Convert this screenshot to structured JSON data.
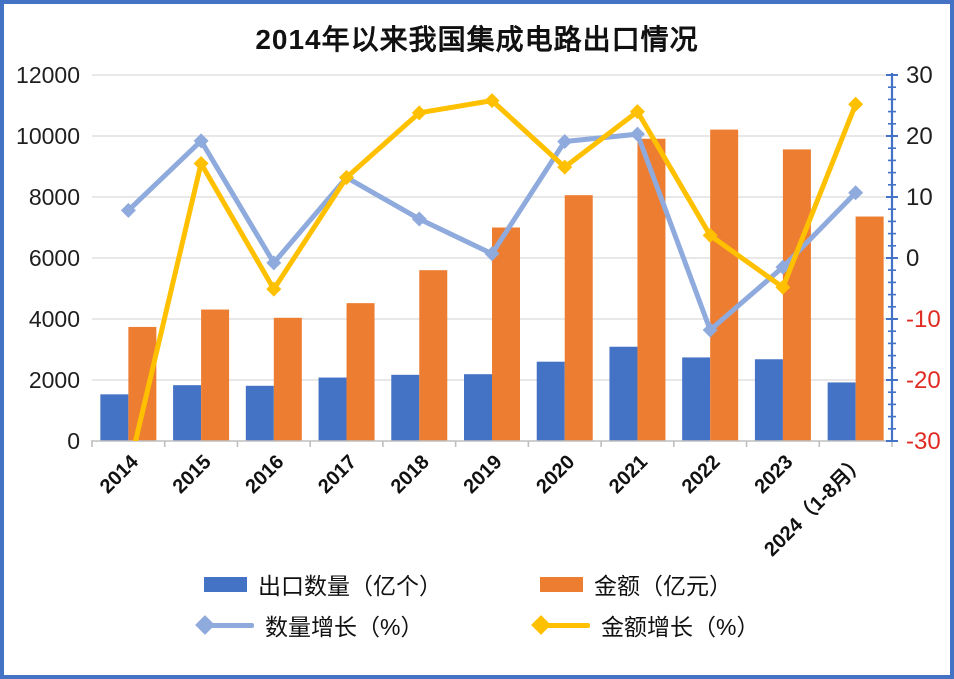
{
  "chart_data": {
    "type": "combo-bar-line",
    "title": "2014年以来我国集成电路出口情况",
    "categories": [
      "2014",
      "2015",
      "2016",
      "2017",
      "2018",
      "2019",
      "2020",
      "2021",
      "2022",
      "2023",
      "2024（1-8月）"
    ],
    "series": [
      {
        "name": "出口数量（亿个）",
        "type": "bar",
        "axis": "left",
        "color": "#4472c4",
        "values": [
          1530,
          1830,
          1810,
          2080,
          2170,
          2190,
          2600,
          3090,
          2740,
          2680,
          1920
        ]
      },
      {
        "name": "金额（亿元）",
        "type": "bar",
        "axis": "left",
        "color": "#ed7d31",
        "values": [
          3740,
          4310,
          4040,
          4520,
          5600,
          7000,
          8060,
          9910,
          10210,
          9560,
          7360
        ]
      },
      {
        "name": "数量增长（%）",
        "type": "line",
        "axis": "right",
        "color": "#8faadc",
        "values": [
          7.8,
          19.2,
          -0.8,
          13.2,
          6.4,
          0.7,
          19.1,
          20.3,
          -11.8,
          -1.5,
          10.7
        ]
      },
      {
        "name": "金额增长（%）",
        "type": "line",
        "axis": "right",
        "color": "#ffc000",
        "values": [
          -35,
          15.5,
          -5.1,
          13.2,
          23.8,
          25.8,
          14.9,
          24.0,
          3.7,
          -4.8,
          25.2
        ]
      }
    ],
    "left_axis": {
      "min": 0,
      "max": 12000,
      "step": 2000,
      "tick_labels": [
        "0",
        "2000",
        "4000",
        "6000",
        "8000",
        "10000",
        "12000"
      ],
      "label_color": "#1f1f1f"
    },
    "right_axis": {
      "min": -30,
      "max": 30,
      "step": 10,
      "minor_step": 2,
      "tick_labels": [
        "30",
        "20",
        "10",
        "0",
        "-10",
        "-20",
        "-30"
      ],
      "positive_color": "#1f1f1f",
      "negative_color": "#e02b23",
      "axis_color": "#4472c4"
    },
    "x_axis": {
      "axis_color": "#bfbfbf",
      "label_color": "#111111"
    },
    "grid": true,
    "grid_color": "#d9d9d9",
    "legend_position": "bottom"
  },
  "frame": {
    "border_color": "#4472c4",
    "background": "#ffffff"
  }
}
